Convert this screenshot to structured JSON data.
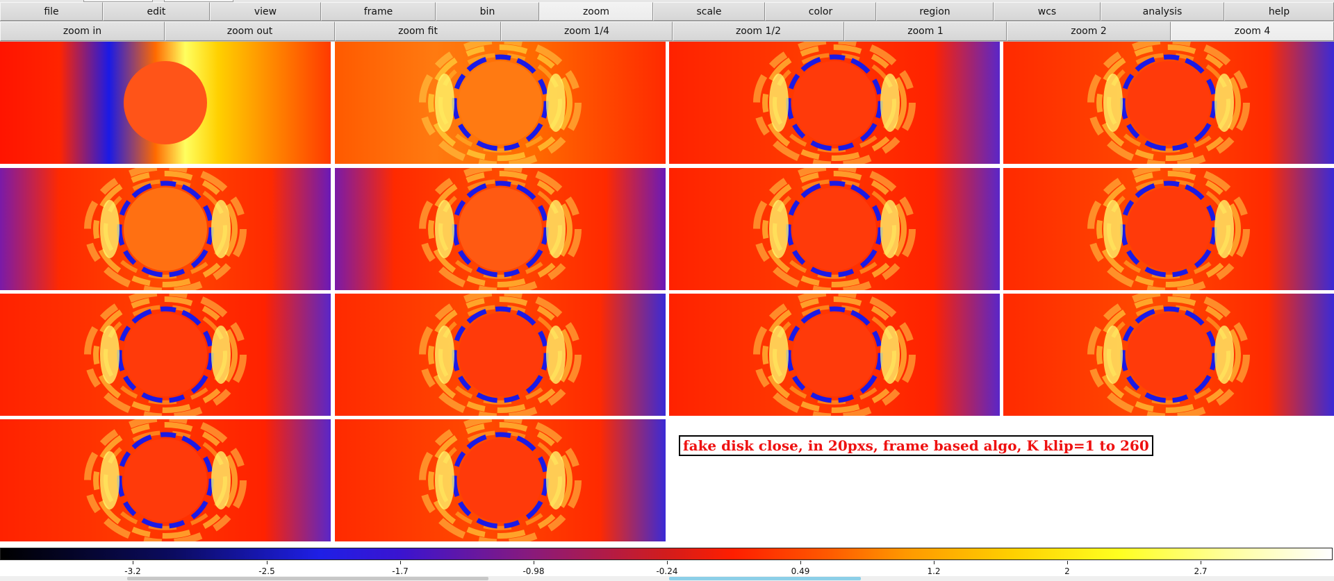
{
  "menu_bar": {
    "items": [
      {
        "label": "file",
        "active": false
      },
      {
        "label": "edit",
        "active": false
      },
      {
        "label": "view",
        "active": false
      },
      {
        "label": "frame",
        "active": false
      },
      {
        "label": "bin",
        "active": false
      },
      {
        "label": "zoom",
        "active": true
      },
      {
        "label": "scale",
        "active": false
      },
      {
        "label": "color",
        "active": false
      },
      {
        "label": "region",
        "active": false
      },
      {
        "label": "wcs",
        "active": false
      },
      {
        "label": "analysis",
        "active": false
      },
      {
        "label": "help",
        "active": false
      }
    ]
  },
  "zoom_bar": {
    "items": [
      {
        "label": "zoom in",
        "active": false
      },
      {
        "label": "zoom out",
        "active": false
      },
      {
        "label": "zoom fit",
        "active": false
      },
      {
        "label": "zoom 1/4",
        "active": false
      },
      {
        "label": "zoom 1/2",
        "active": false
      },
      {
        "label": "zoom 1",
        "active": false
      },
      {
        "label": "zoom 2",
        "active": false
      },
      {
        "label": "zoom 4",
        "active": true
      }
    ]
  },
  "frames": {
    "count": 14,
    "current_frame": 14,
    "colormap": "heat",
    "colors": {
      "background_hot": "#ff2a00",
      "mask_center": "#ff4a12",
      "blue_ring": "#1a1ae6",
      "yellow_ring": "#fff24a",
      "current_outline": "#1a1ad6"
    }
  },
  "annotation": {
    "text": "fake disk close, in 20pxs, frame based algo, K klip=1 to 260",
    "color": "#ee1111"
  },
  "colorbar": {
    "ticks": [
      "-3.2",
      "-2.5",
      "-1.7",
      "-0.98",
      "-0.24",
      "0.49",
      "1.2",
      "2",
      "2.7"
    ]
  }
}
